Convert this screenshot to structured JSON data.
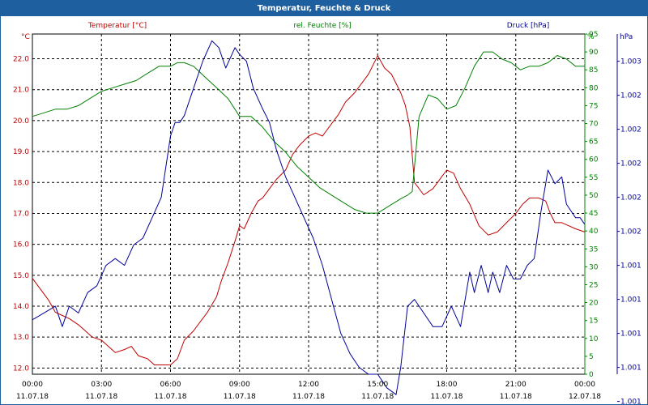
{
  "window": {
    "title": "Temperatur, Feuchte & Druck"
  },
  "colors": {
    "temperature": "#c00000",
    "humidity": "#008000",
    "pressure": "#000099",
    "grid": "#000000",
    "title_bar": "#1d5f9f"
  },
  "chart_data": {
    "type": "line",
    "title": "Temperatur, Feuchte & Druck",
    "grid": true,
    "x_labels": [
      {
        "time": "00:00",
        "date": "11.07.18"
      },
      {
        "time": "03:00",
        "date": "11.07.18"
      },
      {
        "time": "06:00",
        "date": "11.07.18"
      },
      {
        "time": "09:00",
        "date": "11.07.18"
      },
      {
        "time": "12:00",
        "date": "11.07.18"
      },
      {
        "time": "15:00",
        "date": "11.07.18"
      },
      {
        "time": "18:00",
        "date": "11.07.18"
      },
      {
        "time": "21:00",
        "date": "11.07.18"
      },
      {
        "time": "00:00",
        "date": "12.07.18"
      }
    ],
    "x_range_hours": [
      0,
      24
    ],
    "axes": {
      "temperature": {
        "unit": "°C",
        "label": "Temperatur [°C]",
        "range": [
          11.8,
          22.8
        ],
        "ticks": [
          "22.0",
          "21.0",
          "20.0",
          "19.0",
          "18.0",
          "17.0",
          "16.0",
          "15.0",
          "14.0",
          "13.0",
          "12.0"
        ],
        "tick_values": [
          22,
          21,
          20,
          19,
          18,
          17,
          16,
          15,
          14,
          13,
          12
        ]
      },
      "humidity": {
        "unit": "%",
        "label": "rel. Feuchte [%]",
        "range": [
          0,
          95
        ],
        "ticks": [
          "95",
          "90",
          "85",
          "80",
          "75",
          "70",
          "65",
          "60",
          "55",
          "50",
          "45",
          "40",
          "35",
          "30",
          "25",
          "20",
          "15",
          "10",
          "5",
          "0"
        ],
        "tick_values": [
          95,
          90,
          85,
          80,
          75,
          70,
          65,
          60,
          55,
          50,
          45,
          40,
          35,
          30,
          25,
          20,
          15,
          10,
          5,
          0
        ]
      },
      "pressure": {
        "unit": "hPa",
        "label": "Druck [hPa]",
        "range": [
          1000.7,
          1003.2
        ],
        "ticks": [
          "1.003",
          "1.002",
          "1.002",
          "1.002",
          "1.002",
          "1.002",
          "1.001",
          "1.001",
          "1.001",
          "1.001",
          "1.001"
        ],
        "tick_values": [
          1003.0,
          1002.75,
          1002.5,
          1002.25,
          1002.0,
          1001.75,
          1001.5,
          1001.25,
          1001.0,
          1000.75,
          1000.5
        ]
      }
    },
    "series": [
      {
        "name": "Temperatur [°C]",
        "axis": "temperature",
        "x": [
          0,
          0.3,
          0.7,
          1,
          1.3,
          1.6,
          2,
          2.3,
          2.6,
          3,
          3.3,
          3.6,
          4,
          4.3,
          4.6,
          5,
          5.3,
          5.6,
          6,
          6.3,
          6.6,
          7,
          7.3,
          7.6,
          8,
          8.2,
          8.5,
          8.8,
          9,
          9.2,
          9.5,
          9.8,
          10,
          10.3,
          10.6,
          11,
          11.3,
          11.6,
          12,
          12.3,
          12.6,
          13,
          13.3,
          13.6,
          14,
          14.3,
          14.6,
          14.8,
          15,
          15.3,
          15.6,
          16,
          16.2,
          16.4,
          16.6,
          17,
          17.4,
          17.8,
          18,
          18.3,
          18.6,
          19,
          19.4,
          19.8,
          20.2,
          20.6,
          21,
          21.3,
          21.6,
          22,
          22.3,
          22.5,
          22.7,
          23,
          23.3,
          23.6,
          24
        ],
        "values": [
          14.9,
          14.6,
          14.2,
          13.8,
          13.7,
          13.6,
          13.4,
          13.2,
          13.0,
          12.9,
          12.7,
          12.5,
          12.6,
          12.7,
          12.4,
          12.3,
          12.1,
          12.1,
          12.1,
          12.3,
          12.9,
          13.2,
          13.5,
          13.8,
          14.3,
          14.8,
          15.4,
          16.1,
          16.6,
          16.5,
          17.0,
          17.4,
          17.5,
          17.8,
          18.1,
          18.4,
          18.9,
          19.2,
          19.5,
          19.6,
          19.5,
          19.9,
          20.2,
          20.6,
          20.9,
          21.2,
          21.5,
          21.8,
          22.1,
          21.7,
          21.5,
          20.9,
          20.5,
          19.8,
          18.0,
          17.6,
          17.8,
          18.2,
          18.4,
          18.3,
          17.8,
          17.3,
          16.6,
          16.3,
          16.4,
          16.7,
          17.0,
          17.3,
          17.5,
          17.5,
          17.4,
          17.0,
          16.7,
          16.7,
          16.6,
          16.5,
          16.4
        ]
      },
      {
        "name": "rel. Feuchte [%]",
        "axis": "humidity",
        "x": [
          0,
          0.5,
          1,
          1.5,
          2,
          2.5,
          3,
          3.5,
          4,
          4.5,
          5,
          5.5,
          6,
          6.3,
          6.6,
          7,
          7.5,
          8,
          8.5,
          9,
          9.5,
          10,
          10.5,
          11,
          11.5,
          12,
          12.5,
          13,
          13.5,
          14,
          14.5,
          15,
          15.5,
          16,
          16.3,
          16.5,
          16.8,
          17.2,
          17.6,
          18,
          18.4,
          18.8,
          19.2,
          19.6,
          20,
          20.4,
          20.8,
          21.2,
          21.6,
          22,
          22.4,
          22.8,
          23.2,
          23.6,
          24
        ],
        "values": [
          72,
          73,
          74,
          74,
          75,
          77,
          79,
          80,
          81,
          82,
          84,
          86,
          86,
          87,
          87,
          86,
          83,
          80,
          77,
          72,
          72,
          69,
          65,
          62,
          58,
          55,
          52,
          50,
          48,
          46,
          45,
          45,
          47,
          49,
          50,
          51,
          72,
          78,
          77,
          74,
          75,
          80,
          86,
          90,
          90,
          88,
          87,
          85,
          86,
          86,
          87,
          89,
          88,
          86,
          86
        ]
      },
      {
        "name": "Druck [hPa]",
        "axis": "pressure",
        "x": [
          0,
          0.5,
          1,
          1.3,
          1.6,
          2,
          2.4,
          2.8,
          3.2,
          3.6,
          4,
          4.4,
          4.8,
          5.2,
          5.6,
          6,
          6.2,
          6.4,
          6.6,
          7,
          7.4,
          7.8,
          8.1,
          8.4,
          8.8,
          9,
          9.3,
          9.6,
          10,
          10.3,
          10.6,
          11,
          11.4,
          11.8,
          12.2,
          12.6,
          13,
          13.4,
          13.8,
          14.2,
          14.6,
          15,
          15.4,
          15.8,
          16,
          16.3,
          16.6,
          17,
          17.4,
          17.8,
          18.2,
          18.6,
          19,
          19.2,
          19.5,
          19.8,
          20,
          20.3,
          20.6,
          20.9,
          21.2,
          21.5,
          21.8,
          22.1,
          22.4,
          22.7,
          23,
          23.2,
          23.4,
          23.6,
          23.8,
          24
        ],
        "values": [
          1001.1,
          1001.15,
          1001.2,
          1001.05,
          1001.2,
          1001.15,
          1001.3,
          1001.35,
          1001.5,
          1001.55,
          1001.5,
          1001.65,
          1001.7,
          1001.85,
          1002.0,
          1002.45,
          1002.55,
          1002.55,
          1002.6,
          1002.8,
          1003.0,
          1003.15,
          1003.1,
          1002.95,
          1003.1,
          1003.05,
          1003.0,
          1002.8,
          1002.65,
          1002.55,
          1002.35,
          1002.15,
          1002.0,
          1001.85,
          1001.7,
          1001.5,
          1001.25,
          1001.0,
          1000.85,
          1000.75,
          1000.7,
          1000.7,
          1000.6,
          1000.55,
          1000.75,
          1001.2,
          1001.25,
          1001.15,
          1001.05,
          1001.05,
          1001.2,
          1001.05,
          1001.45,
          1001.3,
          1001.5,
          1001.3,
          1001.45,
          1001.3,
          1001.5,
          1001.4,
          1001.4,
          1001.5,
          1001.55,
          1001.9,
          1002.2,
          1002.1,
          1002.15,
          1001.95,
          1001.9,
          1001.85,
          1001.85,
          1001.8
        ]
      }
    ]
  }
}
